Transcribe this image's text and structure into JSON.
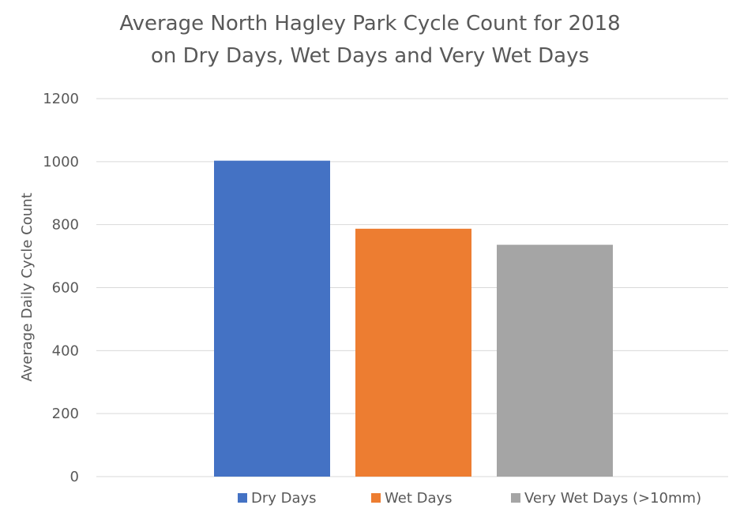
{
  "chart_data": {
    "type": "bar",
    "title_lines": [
      "Average North Hagley Park Cycle Count for 2018",
      "on Dry Days, Wet Days and Very Wet Days"
    ],
    "xlabel": "",
    "ylabel": "Average Daily Cycle Count",
    "ylim": [
      0,
      1200
    ],
    "yticks": [
      "0",
      "200",
      "400",
      "600",
      "800",
      "1000",
      "1200"
    ],
    "grid": true,
    "legend_position": "bottom",
    "series": [
      {
        "name": "Dry Days",
        "value": 1003,
        "color": "#4472C4"
      },
      {
        "name": "Wet Days",
        "value": 787,
        "color": "#ED7D31"
      },
      {
        "name": "Very Wet Days (>10mm)",
        "value": 736,
        "color": "#A5A5A5"
      }
    ]
  },
  "colors": {
    "text": "#595959",
    "gridline": "#D9D9D9"
  }
}
